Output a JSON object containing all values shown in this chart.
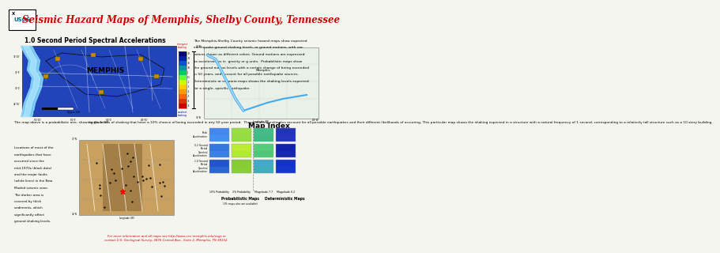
{
  "title": "Seismic Hazard Maps of Memphis, Shelby County, Tennessee",
  "title_color": "#cc0000",
  "header_bg": "#00cccc",
  "bg_color": "#f5f5f0",
  "usgs_text": "USGS",
  "map_title": "1.0 Second Period Spectral Accelerations",
  "description_text": "The Memphis,Shelby County seismic hazard maps show expected earthquake ground shaking levels, or ground motions, with variations shown as different colors. Ground motions are expressed as accelerations in  gravity or g units.  Probabilistic maps show the ground motion levels with a certain change of being exceeded in 50 years, and account for all possible earthquake sources.  Deterministic or scenario maps shows the shaking levels expected for a single, specific earthquake.",
  "para_text": "The map above is a probabilistic one, showing the levels of shaking that have a 10% chance of being exceeded in any 50 year period.  These shaking estimates account for all possible earthquakes and their different likelihoods of occurring. This particular map shows the shaking expected in a structure with a natural frequency of 1 second, corresponding to a relatively tall structure such as a 10 story building.",
  "eq_text": "Locations of most of the earthquakes that have occurred since the mid-1970s (black dots) and the major faults (white lines) in the New Madrid seismic zone. The darker area is covered by thick sediments, which significantly affect ground shaking levels.",
  "map_index_title": "Map Index",
  "row_labels": [
    "Peak\nAcceleration",
    "0.2 Second\nPeriod\nSpectral\nAcceleration",
    "1.0 Second\nPeriod\nSpectral\nAcceleration"
  ],
  "col_labels_bottom": [
    "10% Probability",
    "2% Probability",
    "Magnitude 7.7",
    "Magnitude 6.2"
  ],
  "prob_label": "Probabilistic Maps",
  "prob_sublabel": "(1% maps also are available)",
  "det_label": "Deterministic Maps",
  "footer_text": "For more information and all maps see http://www.ceri.memphis.edu/usgs or\ncontact U.S. Geological Survey, 3876 Central Ave., Suite 2, Memphis, TN 38152.",
  "footer_color": "#cc0000",
  "memphis_label": "MEMPHIS",
  "map_bg": "#2244bb",
  "river_color": "#88ddff",
  "road_color": "#ffffff",
  "colorbar_colors": [
    "#cc0000",
    "#dd3300",
    "#ff6600",
    "#ff9900",
    "#ffcc00",
    "#ccff00",
    "#66ff33",
    "#00cc66",
    "#009999",
    "#0055cc",
    "#0022aa",
    "#000077"
  ],
  "mini_map_bg": "#e8f0e8",
  "mini_river_color": "#44aaee",
  "seis_bg": "#c8a060",
  "seis_dark": "#806030"
}
